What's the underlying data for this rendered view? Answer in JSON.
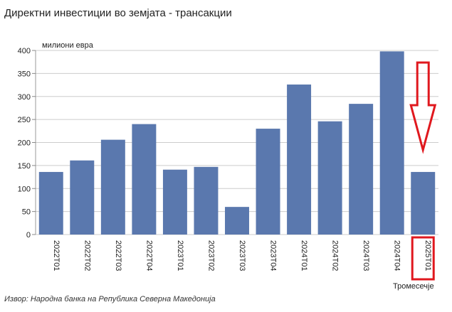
{
  "chart_data": {
    "type": "bar",
    "title": "Директни инвестиции во земјата - трансакции",
    "ylabel": "милиони евра",
    "xlabel": "Тромесечје",
    "source": "Извор: Народна банка на Република Северна Македонија",
    "categories": [
      "2022T01",
      "2022T02",
      "2022T03",
      "2022T04",
      "2023T01",
      "2023T02",
      "2023T03",
      "2023T04",
      "2024T01",
      "2024T02",
      "2024T03",
      "2024T04",
      "2025T01"
    ],
    "series": [
      {
        "values": [
          136,
          161,
          206,
          240,
          141,
          147,
          60,
          230,
          326,
          246,
          284,
          398,
          136
        ]
      }
    ],
    "ylim": [
      0,
      400
    ],
    "yticks": [
      0,
      50,
      100,
      150,
      200,
      250,
      300,
      350,
      400
    ],
    "grid": true,
    "colors": {
      "bar": "#5a78ae",
      "grid": "#cccccc",
      "highlight": "#e0181e"
    },
    "annotations": [
      {
        "type": "down-arrow",
        "target": "2025T01"
      },
      {
        "type": "box",
        "target": "2025T01"
      }
    ]
  }
}
